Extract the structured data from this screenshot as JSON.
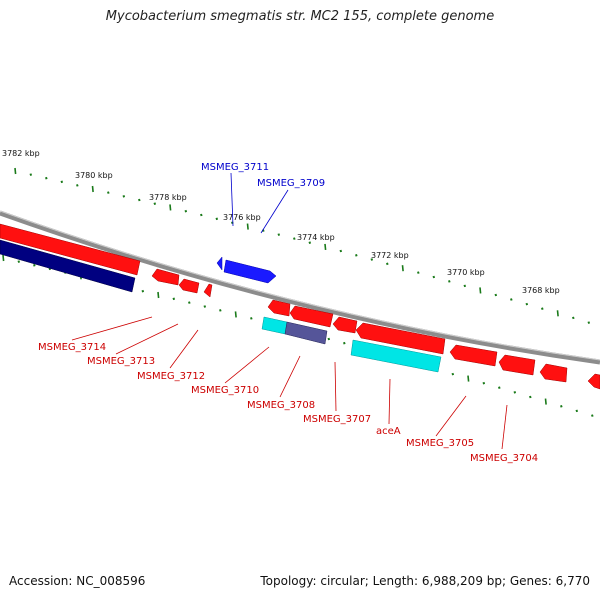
{
  "header": {
    "title": "Mycobacterium smegmatis str. MC2 155, complete genome"
  },
  "footer": {
    "accession": "Accession: NC_008596",
    "summary": "Topology: circular; Length: 6,988,209 bp; Genes: 6,770"
  },
  "colors": {
    "backbone": "#8c8c8c",
    "forward_gene": "#0000ff",
    "reverse_gene": "#ff0000",
    "dark_gene": "#000080",
    "cyan_gene": "#00e5e5",
    "tick": "#1a7a1a",
    "forward_label": "#0000cc",
    "reverse_label": "#cc0000"
  },
  "scale_labels": [
    "3782 kbp",
    "3780 kbp",
    "3778 kbp",
    "3776 kbp",
    "3774 kbp",
    "3772 kbp",
    "3770 kbp",
    "3768 kbp"
  ],
  "forward_gene_labels": [
    "MSMEG_3711",
    "MSMEG_3709"
  ],
  "reverse_gene_labels": [
    "MSMEG_3714",
    "MSMEG_3713",
    "MSMEG_3712",
    "MSMEG_3710",
    "MSMEG_3708",
    "MSMEG_3707",
    "aceA",
    "MSMEG_3705",
    "MSMEG_3704"
  ]
}
